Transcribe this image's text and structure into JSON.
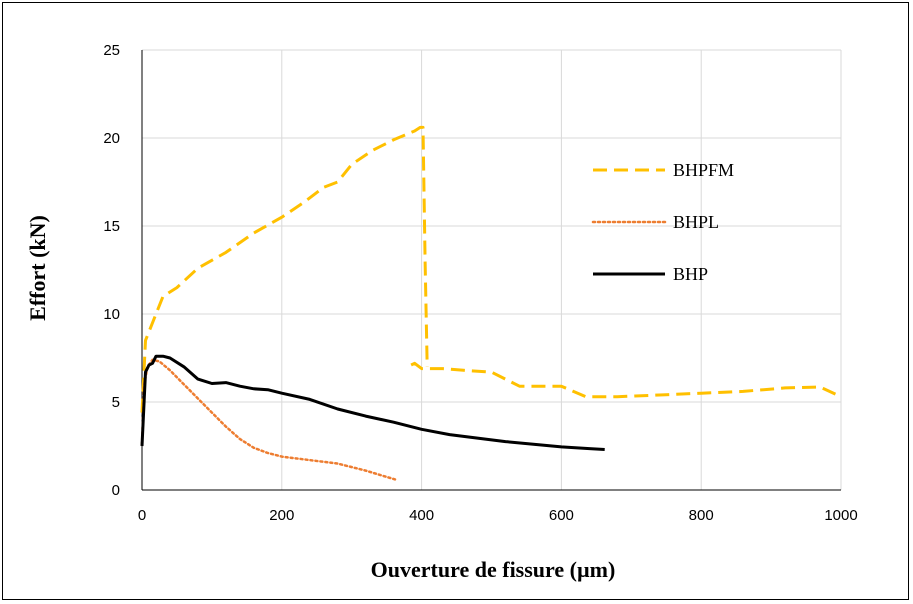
{
  "chart_data": {
    "type": "line",
    "title": "",
    "xlabel": "Ouverture de fissure (µm)",
    "ylabel": "Effort (kN)",
    "xlim": [
      0,
      1000
    ],
    "ylim": [
      0,
      25
    ],
    "x_ticks": [
      0,
      200,
      400,
      600,
      800,
      1000
    ],
    "y_ticks": [
      0,
      5,
      10,
      15,
      20,
      25
    ],
    "grid": true,
    "legend_position": "right",
    "series": [
      {
        "name": "BHPFM",
        "color": "#FFC000",
        "dash": "dashed",
        "segments": [
          [
            [
              0,
              4.4
            ],
            [
              5,
              8.5
            ],
            [
              10,
              9.0
            ],
            [
              20,
              10.0
            ],
            [
              30,
              11.0
            ],
            [
              50,
              11.5
            ],
            [
              80,
              12.6
            ],
            [
              120,
              13.5
            ],
            [
              160,
              14.6
            ],
            [
              200,
              15.5
            ],
            [
              230,
              16.3
            ],
            [
              260,
              17.2
            ],
            [
              280,
              17.5
            ],
            [
              300,
              18.5
            ],
            [
              330,
              19.3
            ],
            [
              360,
              19.9
            ],
            [
              390,
              20.4
            ],
            [
              398,
              20.6
            ],
            [
              402,
              20.6
            ],
            [
              405,
              13.0
            ],
            [
              408,
              7.0
            ]
          ],
          [
            [
              385,
              7.1
            ],
            [
              390,
              7.2
            ],
            [
              400,
              6.9
            ],
            [
              430,
              6.9
            ],
            [
              460,
              6.8
            ],
            [
              500,
              6.7
            ],
            [
              540,
              5.9
            ],
            [
              580,
              5.9
            ],
            [
              600,
              5.9
            ],
            [
              635,
              5.3
            ],
            [
              680,
              5.3
            ],
            [
              740,
              5.4
            ],
            [
              800,
              5.5
            ],
            [
              860,
              5.6
            ],
            [
              920,
              5.8
            ],
            [
              970,
              5.85
            ],
            [
              1000,
              5.3
            ]
          ]
        ]
      },
      {
        "name": "BHPL",
        "color": "#ED7D31",
        "dash": "dotted",
        "segments": [
          [
            [
              0,
              2.6
            ],
            [
              3,
              6.0
            ],
            [
              8,
              7.0
            ],
            [
              15,
              7.4
            ],
            [
              25,
              7.3
            ],
            [
              40,
              6.8
            ],
            [
              60,
              6.0
            ],
            [
              80,
              5.2
            ],
            [
              100,
              4.4
            ],
            [
              120,
              3.6
            ],
            [
              140,
              2.9
            ],
            [
              160,
              2.4
            ],
            [
              180,
              2.1
            ],
            [
              200,
              1.9
            ],
            [
              240,
              1.7
            ],
            [
              280,
              1.5
            ],
            [
              320,
              1.1
            ],
            [
              345,
              0.8
            ],
            [
              362,
              0.6
            ]
          ]
        ]
      },
      {
        "name": "BHP",
        "color": "#000000",
        "dash": "solid",
        "segments": [
          [
            [
              0,
              2.5
            ],
            [
              5,
              6.7
            ],
            [
              10,
              7.1
            ],
            [
              15,
              7.2
            ],
            [
              20,
              7.6
            ],
            [
              30,
              7.6
            ],
            [
              40,
              7.5
            ],
            [
              60,
              7.0
            ],
            [
              80,
              6.3
            ],
            [
              100,
              6.05
            ],
            [
              120,
              6.1
            ],
            [
              140,
              5.9
            ],
            [
              160,
              5.75
            ],
            [
              180,
              5.7
            ],
            [
              200,
              5.5
            ],
            [
              240,
              5.15
            ],
            [
              280,
              4.6
            ],
            [
              320,
              4.2
            ],
            [
              360,
              3.85
            ],
            [
              400,
              3.45
            ],
            [
              440,
              3.15
            ],
            [
              480,
              2.95
            ],
            [
              520,
              2.75
            ],
            [
              560,
              2.6
            ],
            [
              600,
              2.45
            ],
            [
              640,
              2.35
            ],
            [
              662,
              2.3
            ]
          ]
        ]
      }
    ]
  }
}
